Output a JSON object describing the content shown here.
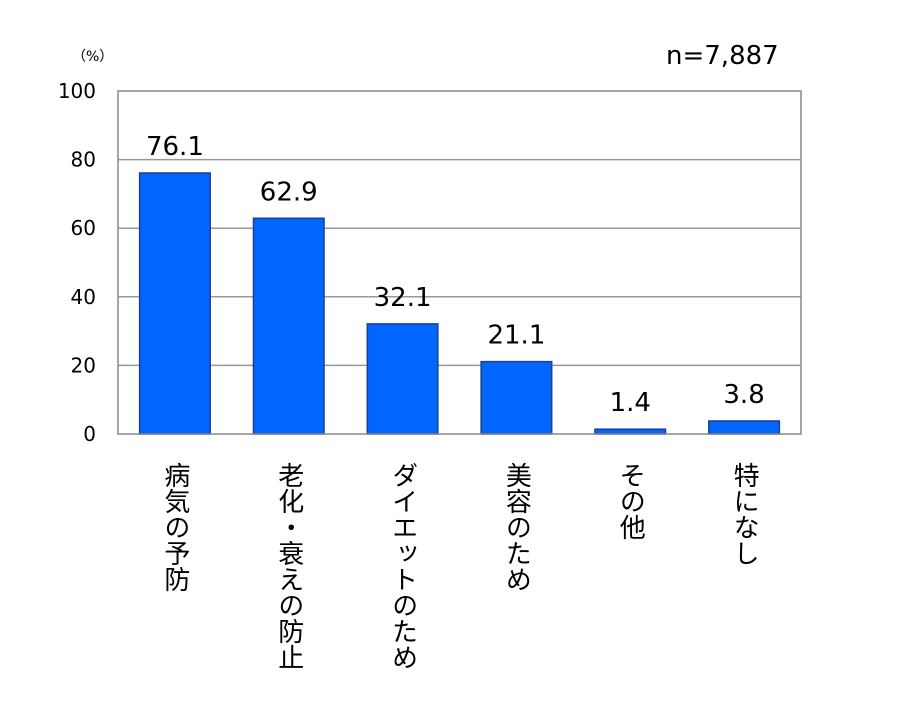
{
  "chart_data": {
    "type": "bar",
    "categories": [
      "病気の予防",
      "老化・衰えの防止",
      "ダイエットのため",
      "美容のため",
      "その他",
      "特になし"
    ],
    "values": [
      76.1,
      62.9,
      32.1,
      21.1,
      1.4,
      3.8
    ],
    "value_labels": [
      "76.1",
      "62.9",
      "32.1",
      "21.1",
      "1.4",
      "3.8"
    ],
    "ylabel": "（%）",
    "ylim": [
      0,
      100
    ],
    "yticks": [
      0,
      20,
      40,
      60,
      80,
      100
    ],
    "annotation": "n=7,887",
    "grid": true,
    "bar_color": "#0066ff",
    "bar_edge_color": "#1f3f8f",
    "grid_color": "#999999"
  }
}
